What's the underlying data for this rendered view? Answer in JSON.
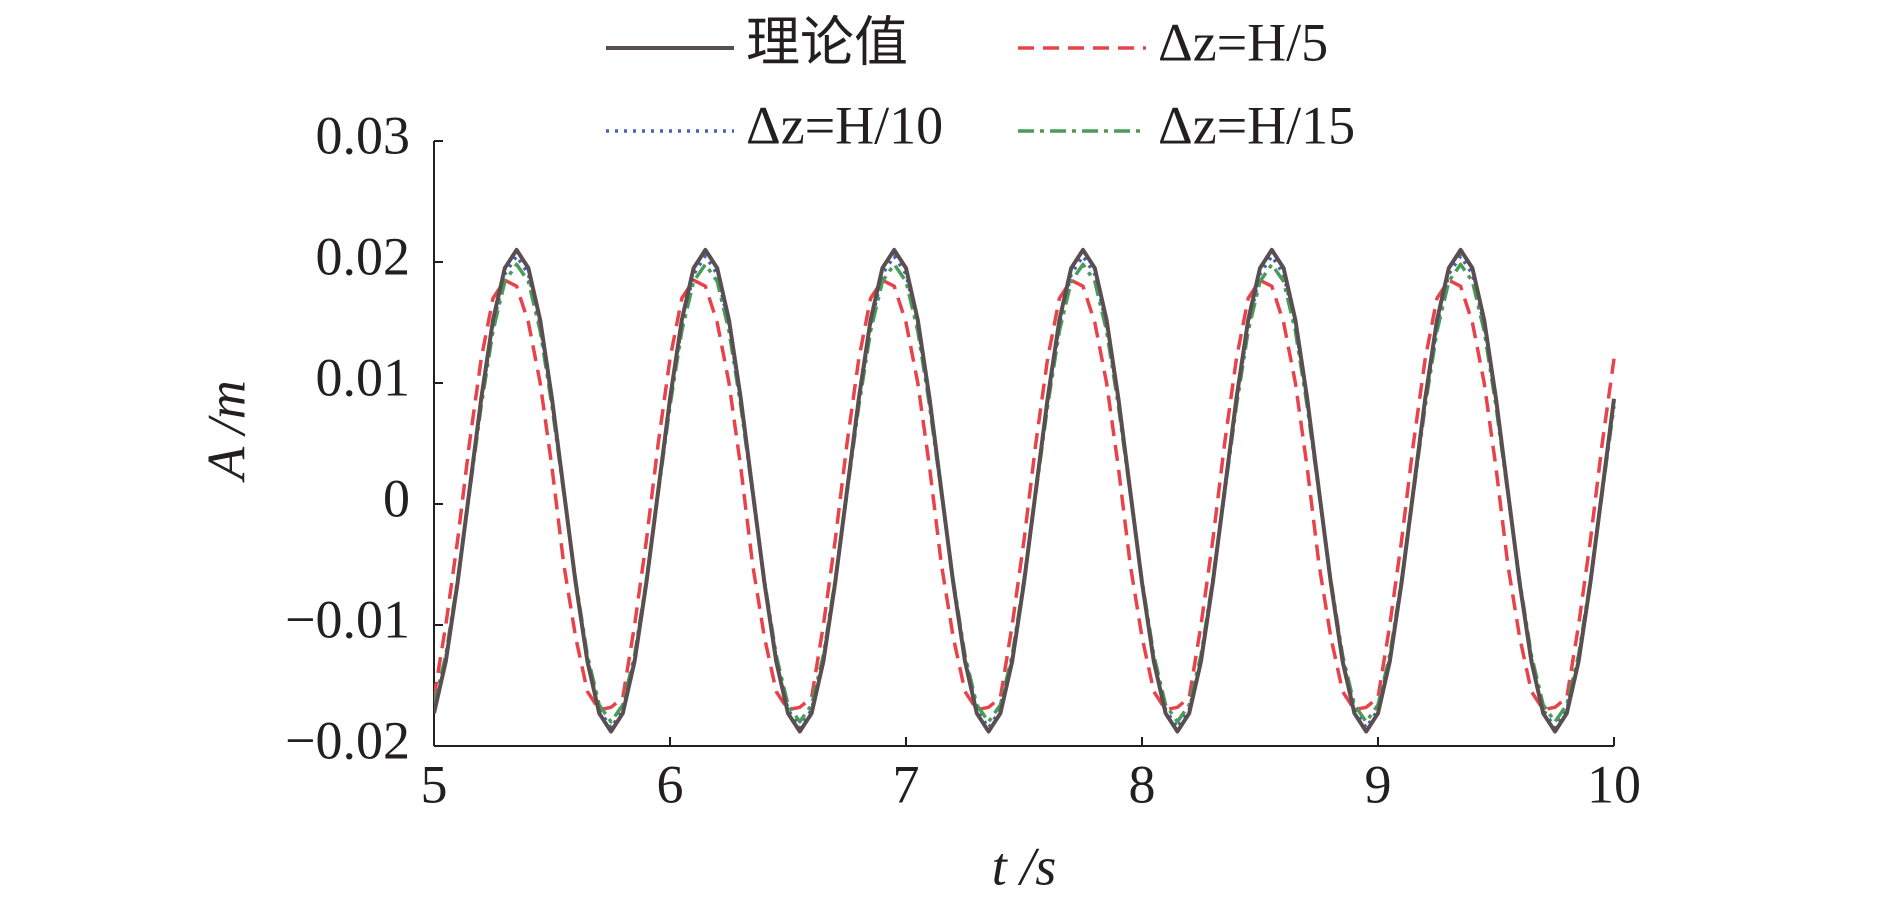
{
  "chart_data": {
    "type": "line",
    "x_label": "t /s",
    "y_label": "A /m",
    "x": [
      5,
      5.05,
      5.1,
      5.15,
      5.2,
      5.25,
      5.3,
      5.35,
      5.4,
      5.45,
      5.5,
      5.55,
      5.6,
      5.65,
      5.7,
      5.75,
      5.8,
      5.85,
      5.9,
      5.95,
      6,
      6.05,
      6.1,
      6.15,
      6.2,
      6.25,
      6.3,
      6.35,
      6.4,
      6.45,
      6.5,
      6.55,
      6.6,
      6.65,
      6.7,
      6.75,
      6.8,
      6.85,
      6.9,
      6.95,
      7,
      7.05,
      7.1,
      7.15,
      7.2,
      7.25,
      7.3,
      7.35,
      7.4,
      7.45,
      7.5,
      7.55,
      7.6,
      7.65,
      7.7,
      7.75,
      7.8,
      7.85,
      7.9,
      7.95,
      8,
      8.05,
      8.1,
      8.15,
      8.2,
      8.25,
      8.3,
      8.35,
      8.4,
      8.45,
      8.5,
      8.55,
      8.6,
      8.65,
      8.7,
      8.75,
      8.8,
      8.85,
      8.9,
      8.95,
      9,
      9.05,
      9.1,
      9.15,
      9.2,
      9.25,
      9.3,
      9.35,
      9.4,
      9.45,
      9.5,
      9.55,
      9.6,
      9.65,
      9.7,
      9.75,
      9.8,
      9.85,
      9.9,
      9.95,
      10
    ],
    "series": [
      {
        "name": "理论值",
        "color": "#5a4f50",
        "dash": "none",
        "values": [
          -0.0173,
          -0.013,
          -0.0065,
          0.0011,
          0.0087,
          0.0152,
          0.0195,
          0.021,
          0.0195,
          0.0152,
          0.0087,
          0.0011,
          -0.0065,
          -0.013,
          -0.0173,
          -0.0188,
          -0.0173,
          -0.013,
          -0.0065,
          0.0011,
          0.0087,
          0.0152,
          0.0195,
          0.021,
          0.0195,
          0.0152,
          0.0087,
          0.0011,
          -0.0065,
          -0.013,
          -0.0173,
          -0.0188,
          -0.0173,
          -0.013,
          -0.0065,
          0.0011,
          0.0087,
          0.0152,
          0.0195,
          0.021,
          0.0195,
          0.0152,
          0.0087,
          0.0011,
          -0.0065,
          -0.013,
          -0.0173,
          -0.0188,
          -0.0173,
          -0.013,
          -0.0065,
          0.0011,
          0.0087,
          0.0152,
          0.0195,
          0.021,
          0.0195,
          0.0152,
          0.0087,
          0.0011,
          -0.0065,
          -0.013,
          -0.0173,
          -0.0188,
          -0.0173,
          -0.013,
          -0.0065,
          0.0011,
          0.0087,
          0.0152,
          0.0195,
          0.021,
          0.0195,
          0.0152,
          0.0087,
          0.0011,
          -0.0065,
          -0.013,
          -0.0173,
          -0.0188,
          -0.0173,
          -0.013,
          -0.0065,
          0.0011,
          0.0087,
          0.0152,
          0.0195,
          0.021,
          0.0195,
          0.0152,
          0.0087,
          0.0011,
          -0.0065,
          -0.013,
          -0.0173,
          -0.0188,
          -0.0173,
          -0.013,
          -0.0065,
          0.0011,
          0.0087
        ]
      },
      {
        "name": "Δz=H/5",
        "color": "#e8434a",
        "dash": "16 9",
        "values": [
          -0.016,
          -0.01,
          -0.003,
          0.005,
          0.012,
          0.017,
          0.0185,
          0.018,
          0.015,
          0.01,
          0.003,
          -0.005,
          -0.011,
          -0.0155,
          -0.017,
          -0.0168,
          -0.016,
          -0.01,
          -0.003,
          0.005,
          0.012,
          0.017,
          0.0185,
          0.018,
          0.015,
          0.01,
          0.003,
          -0.005,
          -0.011,
          -0.0155,
          -0.017,
          -0.0168,
          -0.016,
          -0.01,
          -0.003,
          0.005,
          0.012,
          0.017,
          0.0185,
          0.018,
          0.015,
          0.01,
          0.003,
          -0.005,
          -0.011,
          -0.0155,
          -0.017,
          -0.0168,
          -0.016,
          -0.01,
          -0.003,
          0.005,
          0.012,
          0.017,
          0.0185,
          0.018,
          0.015,
          0.01,
          0.003,
          -0.005,
          -0.011,
          -0.0155,
          -0.017,
          -0.0168,
          -0.016,
          -0.01,
          -0.003,
          0.005,
          0.012,
          0.017,
          0.0185,
          0.018,
          0.015,
          0.01,
          0.003,
          -0.005,
          -0.011,
          -0.0155,
          -0.017,
          -0.0168,
          -0.016,
          -0.01,
          -0.003,
          0.005,
          0.012,
          0.017,
          0.0185,
          0.018,
          0.015,
          0.01,
          0.003,
          -0.005,
          -0.011,
          -0.0155,
          -0.017,
          -0.0168,
          -0.016,
          -0.01,
          -0.003,
          0.005,
          0.012
        ]
      },
      {
        "name": "Δz=H/10",
        "color": "#4a5fb5",
        "dash": "3 6",
        "values": [
          -0.017,
          -0.0128,
          -0.0065,
          0.001,
          0.0085,
          0.0148,
          0.019,
          0.0205,
          0.019,
          0.0148,
          0.0085,
          0.001,
          -0.0065,
          -0.0128,
          -0.017,
          -0.0185,
          -0.017,
          -0.0128,
          -0.0065,
          0.001,
          0.0085,
          0.0148,
          0.019,
          0.0205,
          0.019,
          0.0148,
          0.0085,
          0.001,
          -0.0065,
          -0.0128,
          -0.017,
          -0.0185,
          -0.017,
          -0.0128,
          -0.0065,
          0.001,
          0.0085,
          0.0148,
          0.019,
          0.0205,
          0.019,
          0.0148,
          0.0085,
          0.001,
          -0.0065,
          -0.0128,
          -0.017,
          -0.0185,
          -0.017,
          -0.0128,
          -0.0065,
          0.001,
          0.0085,
          0.0148,
          0.019,
          0.0205,
          0.019,
          0.0148,
          0.0085,
          0.001,
          -0.0065,
          -0.0128,
          -0.017,
          -0.0185,
          -0.017,
          -0.0128,
          -0.0065,
          0.001,
          0.0085,
          0.0148,
          0.019,
          0.0205,
          0.019,
          0.0148,
          0.0085,
          0.001,
          -0.0065,
          -0.0128,
          -0.017,
          -0.0185,
          -0.017,
          -0.0128,
          -0.0065,
          0.001,
          0.0085,
          0.0148,
          0.019,
          0.0205,
          0.019,
          0.0148,
          0.0085,
          0.001,
          -0.0065,
          -0.0128,
          -0.017,
          -0.0185,
          -0.017,
          -0.0128,
          -0.0065,
          0.001,
          0.0085
        ]
      },
      {
        "name": "Δz=H/15",
        "color": "#4a9a5a",
        "dash": "16 6 4 6",
        "values": [
          -0.0166,
          -0.0125,
          -0.0063,
          0.0009,
          0.0081,
          0.0143,
          0.0184,
          0.0198,
          0.0184,
          0.0143,
          0.0081,
          0.0009,
          -0.0063,
          -0.0125,
          -0.0166,
          -0.018,
          -0.0166,
          -0.0125,
          -0.0063,
          0.0009,
          0.0081,
          0.0143,
          0.0184,
          0.0198,
          0.0184,
          0.0143,
          0.0081,
          0.0009,
          -0.0063,
          -0.0125,
          -0.0166,
          -0.018,
          -0.0166,
          -0.0125,
          -0.0063,
          0.0009,
          0.0081,
          0.0143,
          0.0184,
          0.0198,
          0.0184,
          0.0143,
          0.0081,
          0.0009,
          -0.0063,
          -0.0125,
          -0.0166,
          -0.018,
          -0.0166,
          -0.0125,
          -0.0063,
          0.0009,
          0.0081,
          0.0143,
          0.0184,
          0.0198,
          0.0184,
          0.0143,
          0.0081,
          0.0009,
          -0.0063,
          -0.0125,
          -0.0166,
          -0.018,
          -0.0166,
          -0.0125,
          -0.0063,
          0.0009,
          0.0081,
          0.0143,
          0.0184,
          0.0198,
          0.0184,
          0.0143,
          0.0081,
          0.0009,
          -0.0063,
          -0.0125,
          -0.0166,
          -0.018,
          -0.0166,
          -0.0125,
          -0.0063,
          0.0009,
          0.0081,
          0.0143,
          0.0184,
          0.0198,
          0.0184,
          0.0143,
          0.0081,
          0.0009,
          -0.0063,
          -0.0125,
          -0.0166,
          -0.018,
          -0.0166,
          -0.0125,
          -0.0063,
          0.0009,
          0.0081
        ]
      }
    ],
    "xlim": [
      5,
      10
    ],
    "xticks": [
      5,
      6,
      7,
      8,
      9,
      10
    ],
    "ylim": [
      -0.02,
      0.03
    ],
    "yticks": [
      {
        "value": -0.02,
        "label": "−0.02"
      },
      {
        "value": -0.01,
        "label": "−0.01"
      },
      0,
      0.01,
      0.02,
      0.03
    ],
    "grid": false,
    "legend": "top"
  }
}
